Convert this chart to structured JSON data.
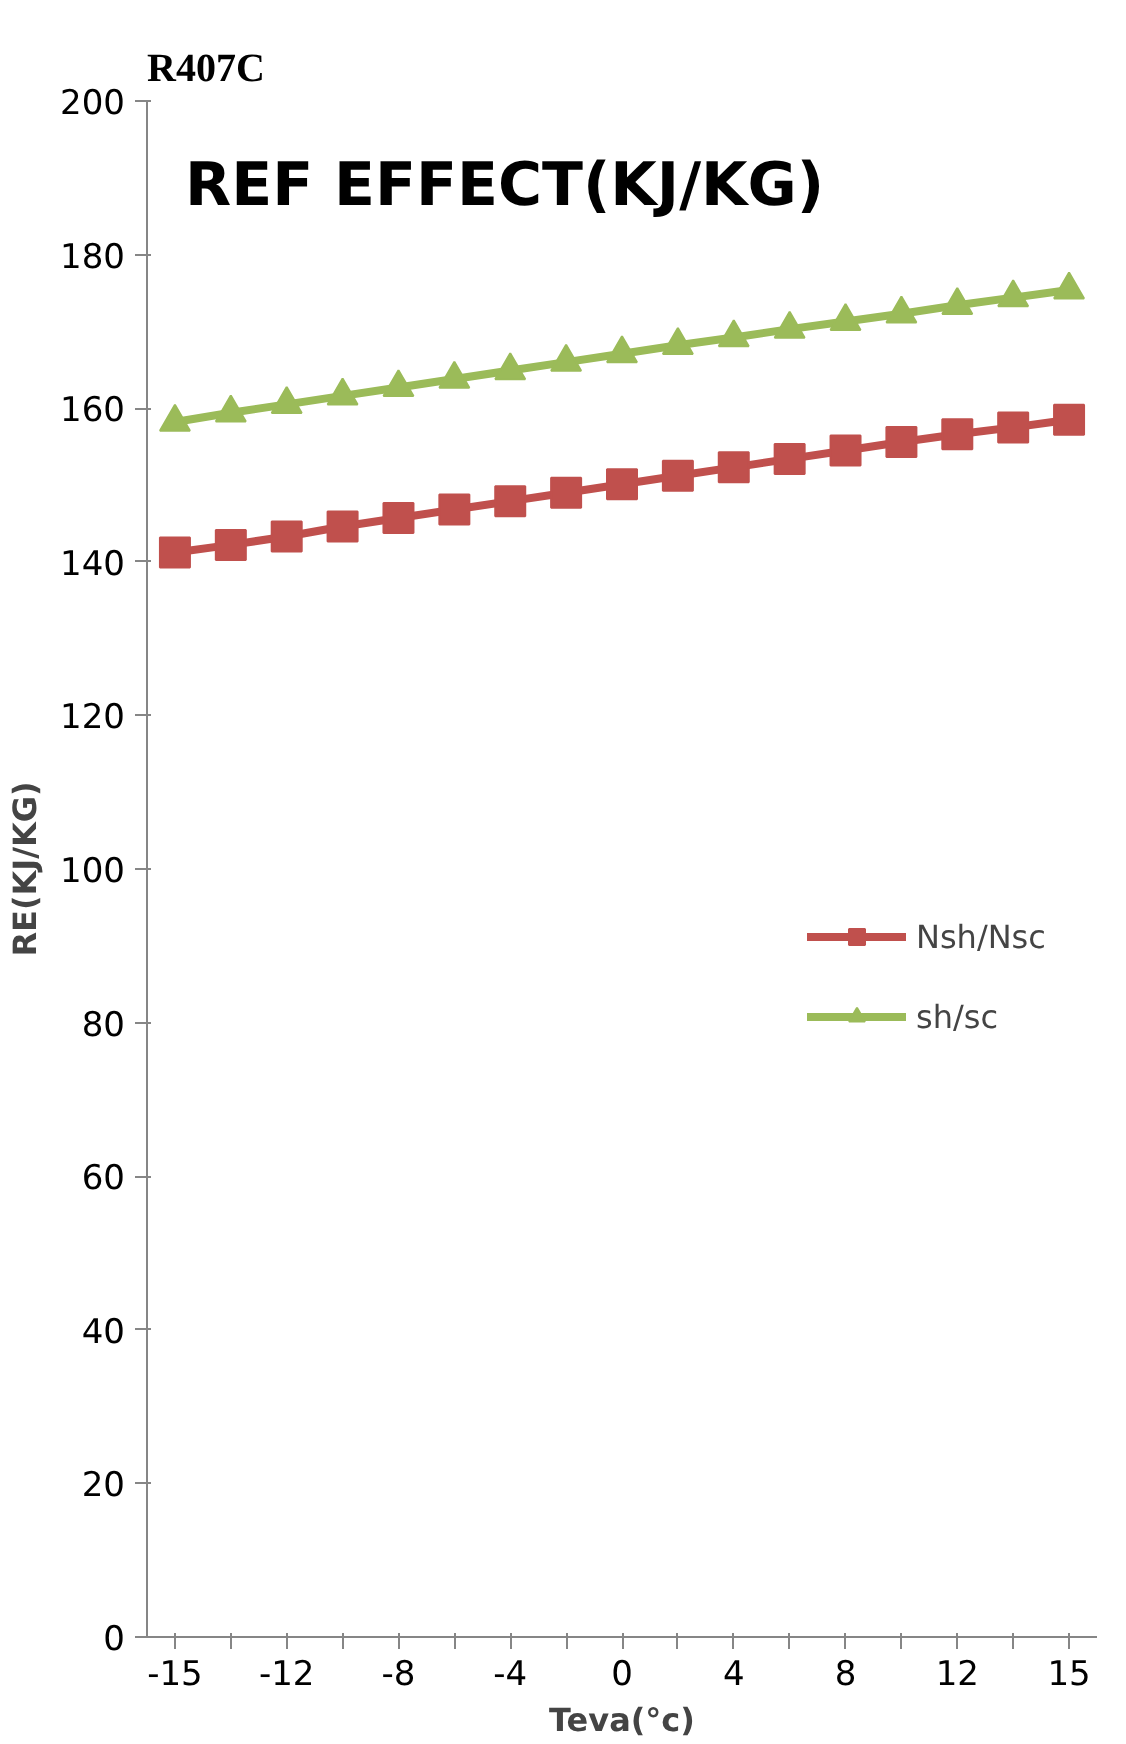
{
  "chart_data": {
    "type": "line",
    "title": "R407C",
    "subtitle": "REF  EFFECT(KJ/KG)",
    "xlabel": "Teva(°c)",
    "ylabel": "RE(KJ/KG)",
    "categories": [
      "-15",
      null,
      "-12",
      null,
      "-8",
      null,
      "-4",
      null,
      "0",
      null,
      "4",
      null,
      "8",
      null,
      "12",
      null,
      "15"
    ],
    "series": [
      {
        "name": "Nsh/Nsc",
        "color": "#c0504d",
        "marker": "square",
        "values": [
          141.2,
          142.2,
          143.3,
          144.6,
          145.7,
          146.8,
          147.9,
          149.0,
          150.1,
          151.2,
          152.3,
          153.4,
          154.5,
          155.6,
          156.6,
          157.5,
          158.5
        ]
      },
      {
        "name": "sh/sc",
        "color": "#9bbb59",
        "marker": "triangle",
        "values": [
          158.2,
          159.4,
          160.5,
          161.6,
          162.7,
          163.8,
          164.9,
          166.0,
          167.1,
          168.2,
          169.2,
          170.3,
          171.3,
          172.3,
          173.4,
          174.4,
          175.4
        ]
      }
    ],
    "ylim": [
      0,
      200
    ],
    "yticks": [
      0,
      20,
      40,
      60,
      80,
      100,
      120,
      140,
      160,
      180,
      200
    ],
    "grid": false,
    "legend": "right",
    "line_style": "solid"
  }
}
